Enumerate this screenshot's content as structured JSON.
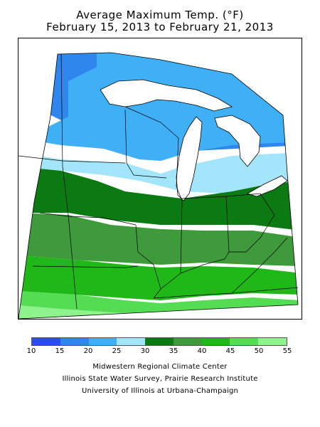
{
  "title": {
    "line1": "Average Maximum Temp. (°F)",
    "line2": "February 15, 2013 to February 21, 2013"
  },
  "legend": {
    "colors": [
      "#2a4cf2",
      "#2f86ec",
      "#3fb0f6",
      "#a3e6fb",
      "#0b7a12",
      "#3e9a3a",
      "#20b818",
      "#54dd52",
      "#8ef38c"
    ],
    "ticks": [
      "10",
      "15",
      "20",
      "25",
      "30",
      "35",
      "40",
      "45",
      "50",
      "55"
    ]
  },
  "credits": {
    "line1": "Midwestern Regional Climate Center",
    "line2": "Illinois State Water Survey, Prairie Research Institute",
    "line3": "University of Illinois at Urbana-Champaign"
  }
}
